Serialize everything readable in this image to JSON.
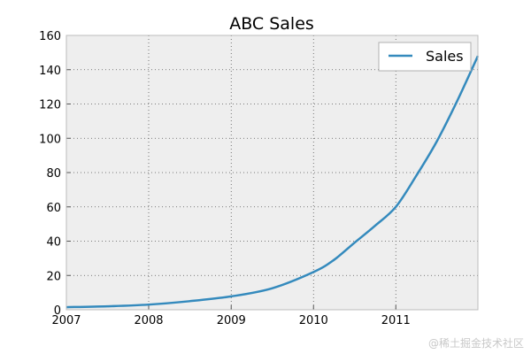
{
  "chart_data": {
    "type": "line",
    "title": "ABC Sales",
    "xlabel": "",
    "ylabel": "",
    "x": [
      "2007-01-01",
      "2007-07-01",
      "2008-01-01",
      "2008-07-01",
      "2009-01-01",
      "2009-07-01",
      "2010-01-01",
      "2010-04-01",
      "2010-07-01",
      "2010-10-01",
      "2011-01-01",
      "2011-04-01",
      "2011-07-01",
      "2011-10-01",
      "2011-12-31"
    ],
    "series": [
      {
        "name": "Sales",
        "color": "#348abd",
        "values": [
          1.5,
          2.0,
          3.0,
          5.0,
          7.8,
          12.5,
          22.0,
          29.0,
          39.0,
          49.0,
          60.0,
          78.0,
          98.0,
          122.0,
          148.0
        ]
      }
    ],
    "x_tick_labels": [
      "2007",
      "2008",
      "2009",
      "2010",
      "2011"
    ],
    "x_ticks": [
      "2007-01-01",
      "2008-01-01",
      "2009-01-01",
      "2010-01-01",
      "2011-01-01"
    ],
    "xlim": [
      "2007-01-01",
      "2011-12-31"
    ],
    "y_ticks": [
      0,
      20,
      40,
      60,
      80,
      100,
      120,
      140,
      160
    ],
    "ylim": [
      0,
      160
    ],
    "grid": true,
    "legend_position": "top-right",
    "plot_background": "#eeeeee"
  },
  "watermark": "@稀土掘金技术社区"
}
